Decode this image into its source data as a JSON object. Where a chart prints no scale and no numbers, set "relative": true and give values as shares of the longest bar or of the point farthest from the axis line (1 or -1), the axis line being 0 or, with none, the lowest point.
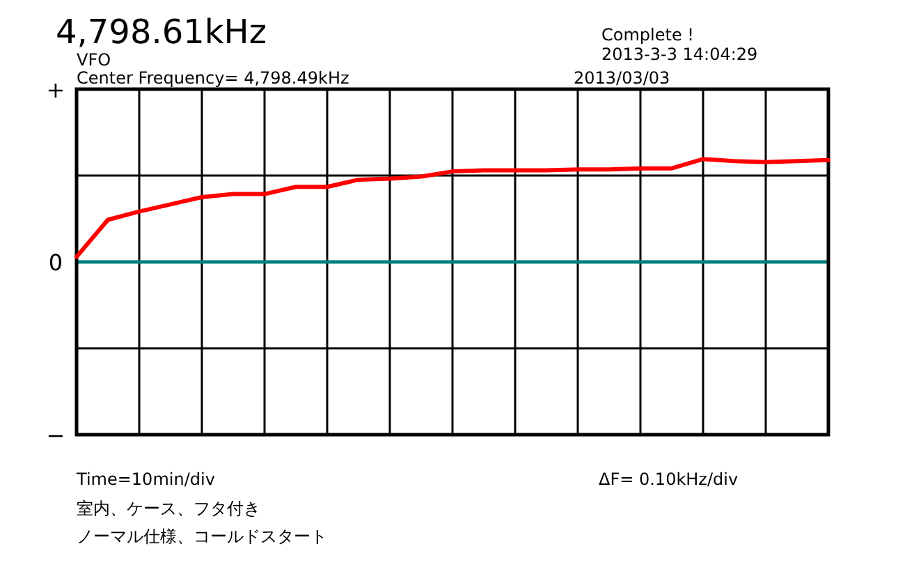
{
  "chart_data": {
    "type": "line",
    "title": "4,798.61kHz",
    "subtitle": "VFO",
    "annotations": [
      "Center Frequency=  4,798.49kHz",
      "Complete !",
      "2013-3-3  14:04:29",
      "2013/03/03",
      "ΔF=    0.10kHz/div",
      "室内、ケース、フタ付き",
      "ノーマル仕様、コールドスタート",
      "+",
      "0",
      "−",
      "Time=10min/div"
    ],
    "categories": [
      null,
      null,
      null,
      null,
      null,
      null,
      null,
      null,
      null,
      null,
      null,
      null,
      null,
      null,
      null,
      null,
      null,
      null,
      null,
      null,
      null,
      null,
      null,
      null,
      null
    ],
    "relative": true,
    "series": [
      {
        "color": "#ff0000",
        "values": [
          0.05,
          0.41,
          0.49,
          0.56,
          0.63,
          0.66,
          0.66,
          0.73,
          0.73,
          0.8,
          0.81,
          0.83,
          0.88,
          0.89,
          0.89,
          0.89,
          0.9,
          0.9,
          0.91,
          0.91,
          1,
          0.98,
          0.97,
          0.98,
          0.99
        ]
      }
    ],
    "grid": true
  }
}
